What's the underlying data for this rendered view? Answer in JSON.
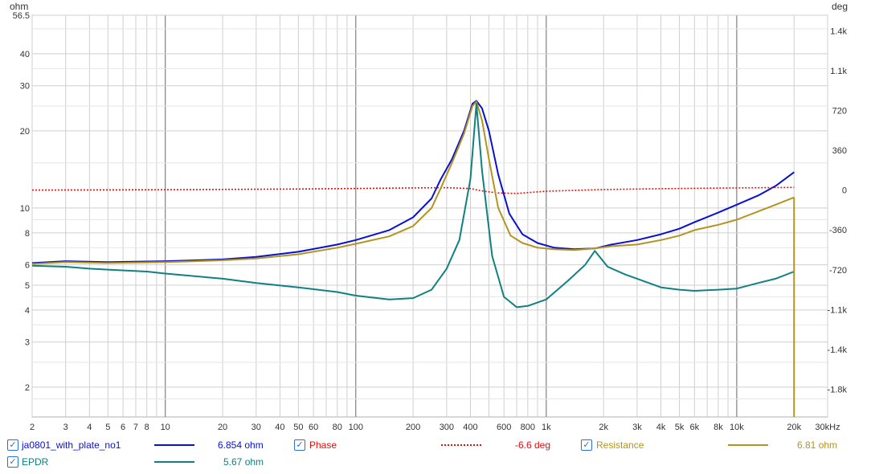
{
  "chart_data": {
    "type": "line",
    "y_left_unit": "ohm",
    "y_right_unit": "deg",
    "x_scale": "log",
    "y_left_scale": "log",
    "x_range_hz": [
      2,
      30000
    ],
    "y_left_range": [
      1.53,
      56.5
    ],
    "y_right_range": [
      -2050,
      1580
    ],
    "x_ticks": [
      {
        "v": 2,
        "label": "2"
      },
      {
        "v": 3,
        "label": "3"
      },
      {
        "v": 4,
        "label": "4"
      },
      {
        "v": 5,
        "label": "5"
      },
      {
        "v": 6,
        "label": "6"
      },
      {
        "v": 7,
        "label": "7"
      },
      {
        "v": 8,
        "label": "8"
      },
      {
        "v": 10,
        "label": "10"
      },
      {
        "v": 20,
        "label": "20"
      },
      {
        "v": 30,
        "label": "30"
      },
      {
        "v": 40,
        "label": "40"
      },
      {
        "v": 50,
        "label": "50"
      },
      {
        "v": 60,
        "label": "60"
      },
      {
        "v": 80,
        "label": "80"
      },
      {
        "v": 100,
        "label": "100"
      },
      {
        "v": 200,
        "label": "200"
      },
      {
        "v": 300,
        "label": "300"
      },
      {
        "v": 400,
        "label": "400"
      },
      {
        "v": 600,
        "label": "600"
      },
      {
        "v": 800,
        "label": "800"
      },
      {
        "v": 1000,
        "label": "1k"
      },
      {
        "v": 2000,
        "label": "2k"
      },
      {
        "v": 3000,
        "label": "3k"
      },
      {
        "v": 4000,
        "label": "4k"
      },
      {
        "v": 5000,
        "label": "5k"
      },
      {
        "v": 6000,
        "label": "6k"
      },
      {
        "v": 8000,
        "label": "8k"
      },
      {
        "v": 10000,
        "label": "10k"
      },
      {
        "v": 20000,
        "label": "20k"
      },
      {
        "v": 30000,
        "label": "30kHz"
      }
    ],
    "y_left_ticks": [
      {
        "v": 56.5,
        "label": "56.5"
      },
      {
        "v": 40,
        "label": "40"
      },
      {
        "v": 30,
        "label": "30"
      },
      {
        "v": 20,
        "label": "20"
      },
      {
        "v": 10,
        "label": "10"
      },
      {
        "v": 8,
        "label": "8"
      },
      {
        "v": 6,
        "label": "6"
      },
      {
        "v": 5,
        "label": "5"
      },
      {
        "v": 4,
        "label": "4"
      },
      {
        "v": 3,
        "label": "3"
      },
      {
        "v": 2,
        "label": "2"
      }
    ],
    "y_right_ticks": [
      {
        "v": 1440,
        "label": "1.4k"
      },
      {
        "v": 1080,
        "label": "1.1k"
      },
      {
        "v": 720,
        "label": "720"
      },
      {
        "v": 360,
        "label": "360"
      },
      {
        "v": 0,
        "label": "0"
      },
      {
        "v": -360,
        "label": "-360"
      },
      {
        "v": -720,
        "label": "-720"
      },
      {
        "v": -1080,
        "label": "-1.1k"
      },
      {
        "v": -1440,
        "label": "-1.4k"
      },
      {
        "v": -1800,
        "label": "-1.8k"
      }
    ],
    "series": [
      {
        "name": "ja0801_with_plate_no1",
        "axis": "left",
        "color": "#0a10d0",
        "style": "solid",
        "points": [
          [
            2,
            6.1
          ],
          [
            3,
            6.2
          ],
          [
            5,
            6.15
          ],
          [
            10,
            6.2
          ],
          [
            20,
            6.3
          ],
          [
            30,
            6.45
          ],
          [
            50,
            6.75
          ],
          [
            80,
            7.2
          ],
          [
            100,
            7.5
          ],
          [
            150,
            8.2
          ],
          [
            200,
            9.2
          ],
          [
            250,
            10.9
          ],
          [
            280,
            13.0
          ],
          [
            320,
            15.5
          ],
          [
            370,
            20.0
          ],
          [
            410,
            25.5
          ],
          [
            430,
            26.2
          ],
          [
            460,
            24.5
          ],
          [
            500,
            20.0
          ],
          [
            560,
            13.5
          ],
          [
            640,
            9.5
          ],
          [
            750,
            7.9
          ],
          [
            900,
            7.3
          ],
          [
            1100,
            7.0
          ],
          [
            1400,
            6.9
          ],
          [
            1800,
            6.95
          ],
          [
            2200,
            7.2
          ],
          [
            3000,
            7.5
          ],
          [
            4000,
            7.9
          ],
          [
            5000,
            8.3
          ],
          [
            6000,
            8.8
          ],
          [
            8000,
            9.6
          ],
          [
            10000,
            10.3
          ],
          [
            13000,
            11.2
          ],
          [
            16000,
            12.2
          ],
          [
            20000,
            13.8
          ]
        ]
      },
      {
        "name": "Phase",
        "axis": "right",
        "color": "#e01010",
        "style": "dotted",
        "points": [
          [
            2,
            0
          ],
          [
            10,
            4
          ],
          [
            50,
            10
          ],
          [
            100,
            15
          ],
          [
            200,
            20
          ],
          [
            300,
            22
          ],
          [
            400,
            14
          ],
          [
            450,
            -5
          ],
          [
            550,
            -25
          ],
          [
            700,
            -30
          ],
          [
            1000,
            -10
          ],
          [
            2000,
            5
          ],
          [
            5000,
            15
          ],
          [
            10000,
            20
          ],
          [
            20000,
            24
          ]
        ]
      },
      {
        "name": "Resistance",
        "axis": "left",
        "color": "#b29420",
        "style": "solid",
        "points": [
          [
            2,
            6.05
          ],
          [
            3,
            6.15
          ],
          [
            5,
            6.1
          ],
          [
            10,
            6.15
          ],
          [
            20,
            6.25
          ],
          [
            30,
            6.35
          ],
          [
            50,
            6.6
          ],
          [
            80,
            7.0
          ],
          [
            100,
            7.25
          ],
          [
            150,
            7.75
          ],
          [
            200,
            8.5
          ],
          [
            250,
            10.0
          ],
          [
            280,
            12.0
          ],
          [
            320,
            15.0
          ],
          [
            370,
            19.5
          ],
          [
            410,
            25.0
          ],
          [
            430,
            26.0
          ],
          [
            460,
            22.0
          ],
          [
            500,
            15.5
          ],
          [
            560,
            10.0
          ],
          [
            650,
            7.8
          ],
          [
            750,
            7.3
          ],
          [
            900,
            7.0
          ],
          [
            1100,
            6.9
          ],
          [
            1400,
            6.85
          ],
          [
            1800,
            6.95
          ],
          [
            2200,
            7.1
          ],
          [
            3000,
            7.2
          ],
          [
            4000,
            7.5
          ],
          [
            5000,
            7.8
          ],
          [
            6000,
            8.2
          ],
          [
            8000,
            8.6
          ],
          [
            10000,
            9.0
          ],
          [
            13000,
            9.7
          ],
          [
            16000,
            10.3
          ],
          [
            20000,
            11.0
          ]
        ]
      },
      {
        "name": "EPDR",
        "axis": "left",
        "color": "#108080",
        "style": "solid",
        "points": [
          [
            2,
            5.95
          ],
          [
            3,
            5.9
          ],
          [
            4,
            5.8
          ],
          [
            5,
            5.75
          ],
          [
            8,
            5.65
          ],
          [
            10,
            5.55
          ],
          [
            20,
            5.3
          ],
          [
            30,
            5.1
          ],
          [
            50,
            4.9
          ],
          [
            80,
            4.7
          ],
          [
            100,
            4.55
          ],
          [
            150,
            4.4
          ],
          [
            200,
            4.45
          ],
          [
            250,
            4.8
          ],
          [
            300,
            5.8
          ],
          [
            350,
            7.5
          ],
          [
            400,
            13.0
          ],
          [
            430,
            25.5
          ],
          [
            460,
            14.0
          ],
          [
            520,
            6.5
          ],
          [
            600,
            4.5
          ],
          [
            700,
            4.1
          ],
          [
            800,
            4.15
          ],
          [
            1000,
            4.4
          ],
          [
            1300,
            5.2
          ],
          [
            1600,
            6.0
          ],
          [
            1800,
            6.8
          ],
          [
            2100,
            5.9
          ],
          [
            2600,
            5.5
          ],
          [
            3000,
            5.3
          ],
          [
            4000,
            4.9
          ],
          [
            5000,
            4.8
          ],
          [
            6000,
            4.75
          ],
          [
            8000,
            4.8
          ],
          [
            10000,
            4.85
          ],
          [
            13000,
            5.1
          ],
          [
            16000,
            5.3
          ],
          [
            20000,
            5.65
          ]
        ]
      }
    ]
  },
  "legend": [
    {
      "label": "ja0801_with_plate_no1",
      "value": "6.854 ohm",
      "color": "#0a10d0",
      "text_color": "#0a10d0",
      "value_color": "#0a10d0",
      "style": "solid"
    },
    {
      "label": "Phase",
      "value": "-6.6 deg",
      "color": "#e01010",
      "text_color": "#e01010",
      "value_color": "#e01010",
      "style": "dotted"
    },
    {
      "label": "Resistance",
      "value": "6.81 ohm",
      "color": "#b29420",
      "text_color": "#b29420",
      "value_color": "#b29420",
      "style": "solid"
    },
    {
      "label": "EPDR",
      "value": "5.67 ohm",
      "color": "#108080",
      "text_color": "#108080",
      "value_color": "#108080",
      "style": "solid"
    }
  ]
}
